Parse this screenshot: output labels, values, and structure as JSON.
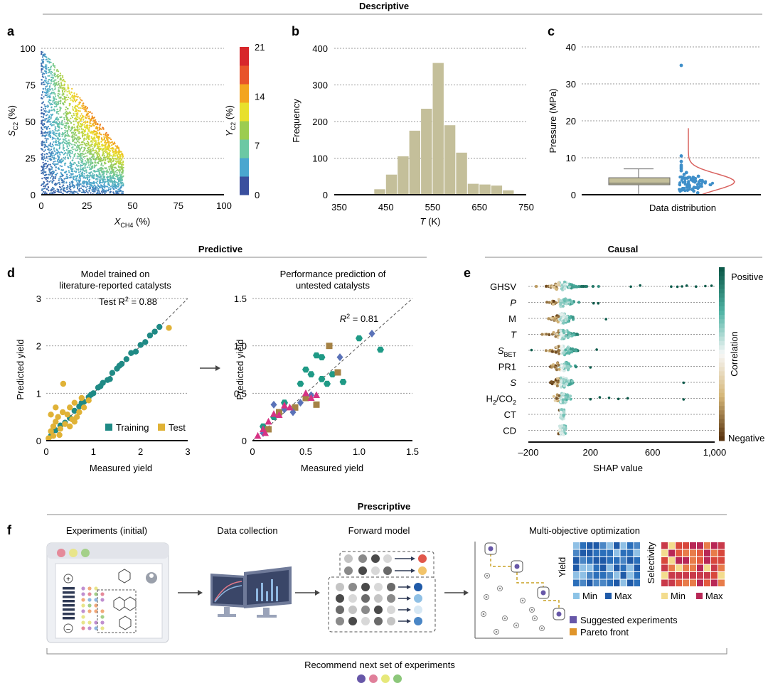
{
  "sections": {
    "descriptive": "Descriptive",
    "predictive": "Predictive",
    "causal": "Causal",
    "prescriptive": "Prescriptive"
  },
  "panel_letters": {
    "a": "a",
    "b": "b",
    "c": "c",
    "d": "d",
    "e": "e",
    "f": "f"
  },
  "chart_data": [
    {
      "id": "a",
      "type": "scatter",
      "xlabel_main": "X",
      "xlabel_sub": "CH4",
      "xlabel_unit": " (%)",
      "ylabel_main": "S",
      "ylabel_sub": "C2",
      "ylabel_unit": " (%)",
      "xlim": [
        0,
        100
      ],
      "ylim": [
        0,
        100
      ],
      "xticks": [
        0,
        25,
        50,
        75,
        100
      ],
      "yticks": [
        0,
        25,
        50,
        75,
        100
      ],
      "colorbar": {
        "label_main": "Y",
        "label_sub": "C2",
        "label_unit": " (%)",
        "range": [
          0,
          21
        ],
        "ticks": [
          0,
          7,
          14,
          21
        ],
        "colors": [
          "#3a4f9e",
          "#4aa6cf",
          "#6cc8a4",
          "#9ccc50",
          "#e8e02c",
          "#f3a51f",
          "#e8542a",
          "#d7272b"
        ]
      },
      "description": "Dense scatter of ~thousands of literature data points; selectivity decreases as conversion increases; points extend to ~45% conversion."
    },
    {
      "id": "b",
      "type": "bar",
      "xlabel": "T",
      "xlabel_unit": " (K)",
      "ylabel": "Frequency",
      "xlim": [
        350,
        750
      ],
      "ylim": [
        0,
        400
      ],
      "xticks": [
        350,
        450,
        550,
        650,
        750
      ],
      "yticks": [
        0,
        100,
        200,
        300,
        400
      ],
      "bin_width": 25,
      "bins": [
        425,
        450,
        475,
        500,
        525,
        550,
        575,
        600,
        625,
        650,
        675,
        700
      ],
      "values": [
        15,
        55,
        105,
        175,
        235,
        360,
        190,
        115,
        30,
        28,
        25,
        12
      ],
      "color": "#c4bf9a"
    },
    {
      "id": "c",
      "type": "box+strip",
      "xlabel": "Data distribution",
      "ylabel": "Pressure (MPa)",
      "ylim": [
        0,
        40
      ],
      "yticks": [
        0,
        10,
        20,
        30,
        40
      ],
      "box": {
        "min": 0.1,
        "q1": 2.7,
        "median": 3.1,
        "q3": 4.6,
        "max": 7.0
      },
      "outliers": [
        35.0,
        10.5,
        9.0,
        8.0,
        7.5,
        7.0,
        6.5,
        6.0,
        5.5,
        5.0,
        4.5,
        4.0,
        3.5,
        3.0,
        3.0,
        2.5,
        2.5,
        2.0,
        2.0,
        2.0,
        1.5,
        1.0,
        1.0,
        0.5
      ],
      "density_color": "#d9625f",
      "point_color": "#3f8fc9",
      "box_color": "#c4bf9a"
    },
    {
      "id": "d1",
      "type": "scatter",
      "title_line1": "Model trained on",
      "title_line2": "literature-reported catalysts",
      "xlabel": "Measured yield",
      "ylabel": "Predicted yield",
      "xlim": [
        0,
        3
      ],
      "ylim": [
        0,
        3
      ],
      "xticks": [
        0,
        1,
        2,
        3
      ],
      "yticks": [
        0,
        1,
        2,
        3
      ],
      "annotation_prefix": "Test R",
      "annotation_value": " = 0.88",
      "series": [
        {
          "name": "Training",
          "color": "#1f8a85",
          "points": [
            [
              0.1,
              0.1
            ],
            [
              0.2,
              0.22
            ],
            [
              0.3,
              0.32
            ],
            [
              0.4,
              0.38
            ],
            [
              0.5,
              0.48
            ],
            [
              0.6,
              0.63
            ],
            [
              0.7,
              0.72
            ],
            [
              0.8,
              0.82
            ],
            [
              0.9,
              0.92
            ],
            [
              1.0,
              1.0
            ],
            [
              1.1,
              1.12
            ],
            [
              1.2,
              1.22
            ],
            [
              1.3,
              1.28
            ],
            [
              1.4,
              1.43
            ],
            [
              1.5,
              1.52
            ],
            [
              1.6,
              1.62
            ],
            [
              1.7,
              1.72
            ],
            [
              1.8,
              1.85
            ],
            [
              1.9,
              1.88
            ],
            [
              2.0,
              2.02
            ],
            [
              2.1,
              2.08
            ],
            [
              2.2,
              2.22
            ],
            [
              2.3,
              2.3
            ],
            [
              2.4,
              2.4
            ],
            [
              0.75,
              0.8
            ],
            [
              0.95,
              0.97
            ],
            [
              1.15,
              1.15
            ],
            [
              1.35,
              1.3
            ],
            [
              1.55,
              1.58
            ]
          ]
        },
        {
          "name": "Test",
          "color": "#e0b236",
          "points": [
            [
              0.05,
              0.05
            ],
            [
              0.1,
              0.2
            ],
            [
              0.15,
              0.3
            ],
            [
              0.2,
              0.4
            ],
            [
              0.25,
              0.5
            ],
            [
              0.3,
              0.25
            ],
            [
              0.35,
              0.6
            ],
            [
              0.4,
              0.35
            ],
            [
              0.45,
              0.55
            ],
            [
              0.5,
              0.7
            ],
            [
              0.55,
              0.45
            ],
            [
              0.6,
              0.8
            ],
            [
              0.65,
              0.5
            ],
            [
              0.7,
              0.6
            ],
            [
              0.75,
              0.9
            ],
            [
              0.8,
              0.7
            ],
            [
              0.9,
              0.85
            ],
            [
              0.36,
              1.2
            ],
            [
              0.1,
              0.55
            ],
            [
              0.2,
              0.7
            ],
            [
              0.5,
              0.3
            ],
            [
              0.6,
              0.4
            ],
            [
              2.6,
              2.38
            ],
            [
              0.15,
              0.1
            ],
            [
              0.28,
              0.12
            ]
          ]
        }
      ]
    },
    {
      "id": "d2",
      "type": "scatter",
      "title_line1": "Performance prediction of",
      "title_line2": "untested catalysts",
      "xlabel": "Measured yield",
      "ylabel": "Predicted yield",
      "xlim": [
        0,
        1.5
      ],
      "ylim": [
        0,
        1.5
      ],
      "xticks": [
        0,
        0.5,
        1.0,
        1.5
      ],
      "yticks": [
        0,
        0.5,
        1.0,
        1.5
      ],
      "xtick_labels": [
        "0",
        "0.5",
        "1.0",
        "1.5"
      ],
      "ytick_labels": [
        "0",
        "0.5",
        "1.0",
        "1.5"
      ],
      "annotation_prefix": "R",
      "annotation_value": " = 0.81",
      "series": [
        {
          "name": "hexagon",
          "marker": "hexagon",
          "color": "#1f9a86",
          "points": [
            [
              0.6,
              0.9
            ],
            [
              0.65,
              0.88
            ],
            [
              0.5,
              0.75
            ],
            [
              0.55,
              0.7
            ],
            [
              0.45,
              0.6
            ],
            [
              0.65,
              0.65
            ],
            [
              0.7,
              0.6
            ],
            [
              0.75,
              0.7
            ],
            [
              1.0,
              1.08
            ],
            [
              1.2,
              0.96
            ],
            [
              0.85,
              0.62
            ],
            [
              0.3,
              0.4
            ],
            [
              0.2,
              0.25
            ],
            [
              0.1,
              0.15
            ]
          ]
        },
        {
          "name": "square",
          "marker": "square",
          "color": "#a58245",
          "points": [
            [
              0.72,
              1.0
            ],
            [
              0.8,
              0.72
            ],
            [
              0.5,
              0.45
            ],
            [
              0.6,
              0.38
            ],
            [
              0.25,
              0.3
            ],
            [
              0.15,
              0.12
            ],
            [
              0.4,
              0.35
            ]
          ]
        },
        {
          "name": "diamond",
          "marker": "diamond",
          "color": "#5a72b8",
          "points": [
            [
              0.2,
              0.38
            ],
            [
              0.3,
              0.33
            ],
            [
              0.45,
              0.4
            ],
            [
              0.55,
              0.48
            ],
            [
              0.82,
              0.88
            ],
            [
              1.12,
              1.13
            ],
            [
              0.1,
              0.08
            ],
            [
              0.38,
              0.3
            ]
          ]
        },
        {
          "name": "triangle",
          "marker": "triangle",
          "color": "#d63384",
          "points": [
            [
              0.05,
              0.05
            ],
            [
              0.1,
              0.12
            ],
            [
              0.15,
              0.2
            ],
            [
              0.2,
              0.28
            ],
            [
              0.3,
              0.37
            ],
            [
              0.35,
              0.35
            ],
            [
              0.5,
              0.5
            ],
            [
              0.55,
              0.45
            ],
            [
              0.6,
              0.48
            ],
            [
              0.25,
              0.27
            ],
            [
              0.12,
              0.08
            ]
          ]
        }
      ]
    },
    {
      "id": "e",
      "type": "beeswarm",
      "xlabel": "SHAP value",
      "xlim": [
        -200,
        1000
      ],
      "xticks": [
        -200,
        200,
        600,
        1000
      ],
      "xtick_labels": [
        "–200",
        "200",
        "600",
        "1,000"
      ],
      "features": [
        {
          "main": "GHSV",
          "sub": "",
          "italic": false,
          "spread": [
            -150,
            380
          ],
          "outliers": [
            460,
            520,
            720,
            760,
            790,
            820,
            880,
            940,
            980
          ]
        },
        {
          "main": "P",
          "sub": "",
          "italic": true,
          "spread": [
            -120,
            180
          ],
          "outliers": [
            220,
            250
          ]
        },
        {
          "main": "M",
          "sub": "",
          "italic": false,
          "spread": [
            -120,
            160
          ],
          "outliers": [
            300
          ]
        },
        {
          "main": "T",
          "sub": "",
          "italic": true,
          "spread": [
            -160,
            170
          ],
          "outliers": []
        },
        {
          "main": "S",
          "sub": "BET",
          "italic": true,
          "spread": [
            -100,
            180
          ],
          "outliers": [
            -180,
            240
          ]
        },
        {
          "main": "PR1",
          "sub": "",
          "italic": false,
          "spread": [
            -100,
            160
          ],
          "outliers": [
            200
          ]
        },
        {
          "main": "S",
          "sub": "",
          "italic": true,
          "spread": [
            -110,
            170
          ],
          "outliers": [
            800
          ]
        },
        {
          "main": "H",
          "sub": "2",
          "suffix": "/CO",
          "sub2": "2",
          "italic": false,
          "spread": [
            -40,
            120
          ],
          "outliers": [
            200,
            260,
            320,
            380,
            440,
            800
          ]
        },
        {
          "main": "CT",
          "sub": "",
          "italic": false,
          "spread": [
            -30,
            30
          ],
          "outliers": []
        },
        {
          "main": "CD",
          "sub": "",
          "italic": false,
          "spread": [
            -40,
            40
          ],
          "outliers": []
        }
      ],
      "colorbar": {
        "label": "Correlation",
        "top_label": "Positive",
        "bottom_label": "Negative",
        "colors": [
          "#0d5a4a",
          "#4fb3a4",
          "#f7f7f7",
          "#d5b678",
          "#5a3510"
        ]
      }
    }
  ],
  "workflow": {
    "steps": [
      {
        "label": "Experiments (initial)"
      },
      {
        "label": "Data collection"
      },
      {
        "label": "Forward model"
      },
      {
        "label": "Multi-objective optimization"
      }
    ],
    "yield_label": "Yield",
    "selectivity_label": "Selectivity",
    "min_label": "Min",
    "max_label": "Max",
    "legend": [
      {
        "label": "Suggested experiments",
        "color": "#6757a8"
      },
      {
        "label": "Pareto front",
        "color": "#e0952a"
      }
    ],
    "recommend_label": "Recommend next set of experiments",
    "recommend_dots": [
      "#6757a8",
      "#e07f9a",
      "#e6e87a",
      "#8cc77a"
    ],
    "window_dots": [
      "#e58a9a",
      "#e8e58a",
      "#a4d089"
    ],
    "plus_symbol": "+",
    "minus_symbol": "–"
  }
}
